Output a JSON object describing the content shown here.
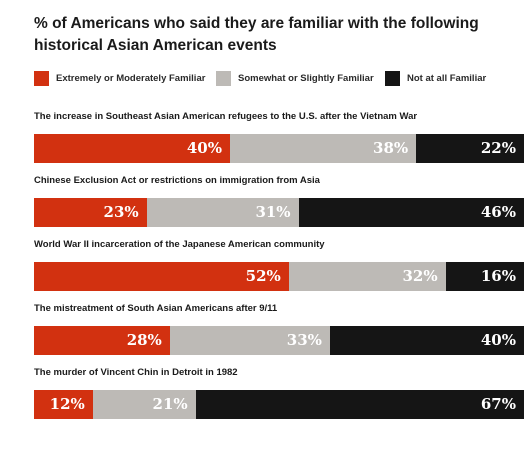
{
  "chart_data": {
    "type": "bar",
    "orientation": "horizontal",
    "stacked": true,
    "title": "% of Americans who said they are familiar with the following historical Asian American events",
    "legend_placement": "top",
    "series": [
      {
        "name": "Extremely or Moderately Familiar",
        "color": "#d23110",
        "label_color": "#ffffff",
        "values": [
          40,
          23,
          52,
          28,
          12
        ]
      },
      {
        "name": "Somewhat or Slightly Familiar",
        "color": "#bdbab6",
        "label_color": "#ffffff",
        "values": [
          38,
          31,
          32,
          33,
          21
        ]
      },
      {
        "name": "Not at all Familiar",
        "color": "#151515",
        "label_color": "#ffffff",
        "values": [
          22,
          46,
          16,
          40,
          67
        ]
      }
    ],
    "categories": [
      "The increase in Southeast Asian American refugees to the U.S. after the Vietnam War",
      "Chinese Exclusion Act or restrictions on immigration from Asia",
      "World War II incarceration of the Japanese American community",
      "The mistreatment of South Asian Americans after 9/11",
      "The murder of Vincent Chin in Detroit in 1982"
    ],
    "value_suffix": "%",
    "xlim": [
      0,
      100
    ]
  }
}
